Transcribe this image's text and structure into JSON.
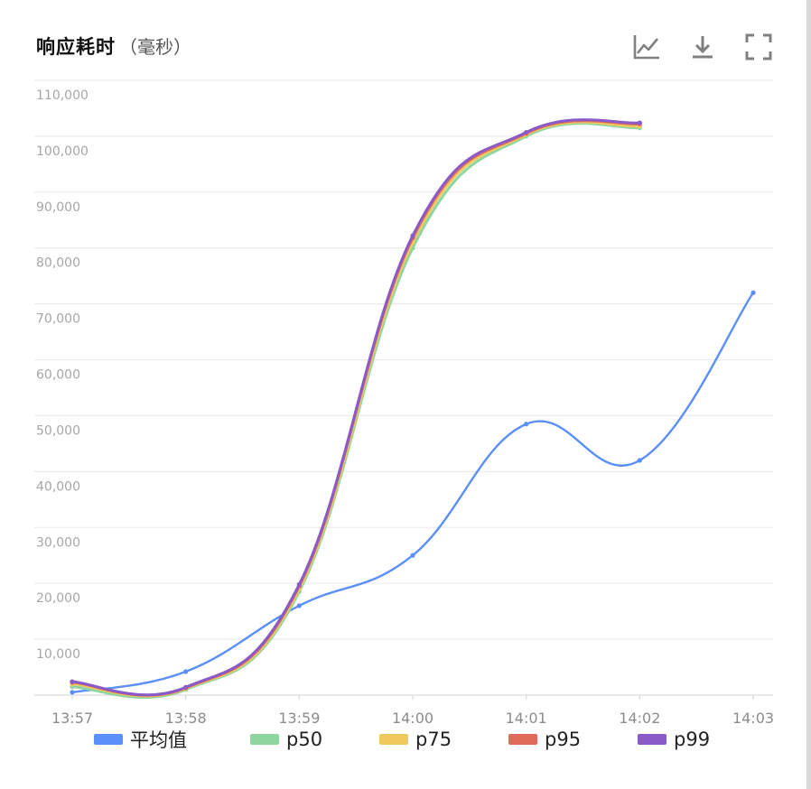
{
  "header": {
    "title": "响应耗时",
    "subtitle": "（毫秒）"
  },
  "toolbar": {
    "icons": [
      "line-chart-icon",
      "download-icon",
      "fullscreen-icon"
    ]
  },
  "chart_data": {
    "type": "line",
    "title": "响应耗时",
    "x": [
      "13:57",
      "13:58",
      "13:59",
      "14:00",
      "14:01",
      "14:02",
      "14:03"
    ],
    "y_ticks": [
      "10,000",
      "20,000",
      "30,000",
      "40,000",
      "50,000",
      "60,000",
      "70,000",
      "80,000",
      "90,000",
      "100,000",
      "110,000"
    ],
    "ylim": [
      0,
      110000
    ],
    "grid": true,
    "legend_position": "bottom",
    "smooth": true,
    "series": [
      {
        "name": "平均值",
        "color": "#5b8ff9",
        "values": [
          500,
          4200,
          16000,
          25000,
          48500,
          42000,
          72000
        ]
      },
      {
        "name": "p50",
        "color": "#8ed6a0",
        "values": [
          1500,
          1000,
          18500,
          80000,
          100000,
          101500,
          null
        ]
      },
      {
        "name": "p75",
        "color": "#f0c95e",
        "values": [
          2000,
          1200,
          19000,
          81000,
          100300,
          101800,
          null
        ]
      },
      {
        "name": "p95",
        "color": "#e06b5a",
        "values": [
          2300,
          1300,
          19500,
          81800,
          100500,
          102200,
          null
        ]
      },
      {
        "name": "p99",
        "color": "#8a5ac8",
        "values": [
          2400,
          1400,
          19800,
          82200,
          100700,
          102400,
          null
        ]
      }
    ]
  }
}
